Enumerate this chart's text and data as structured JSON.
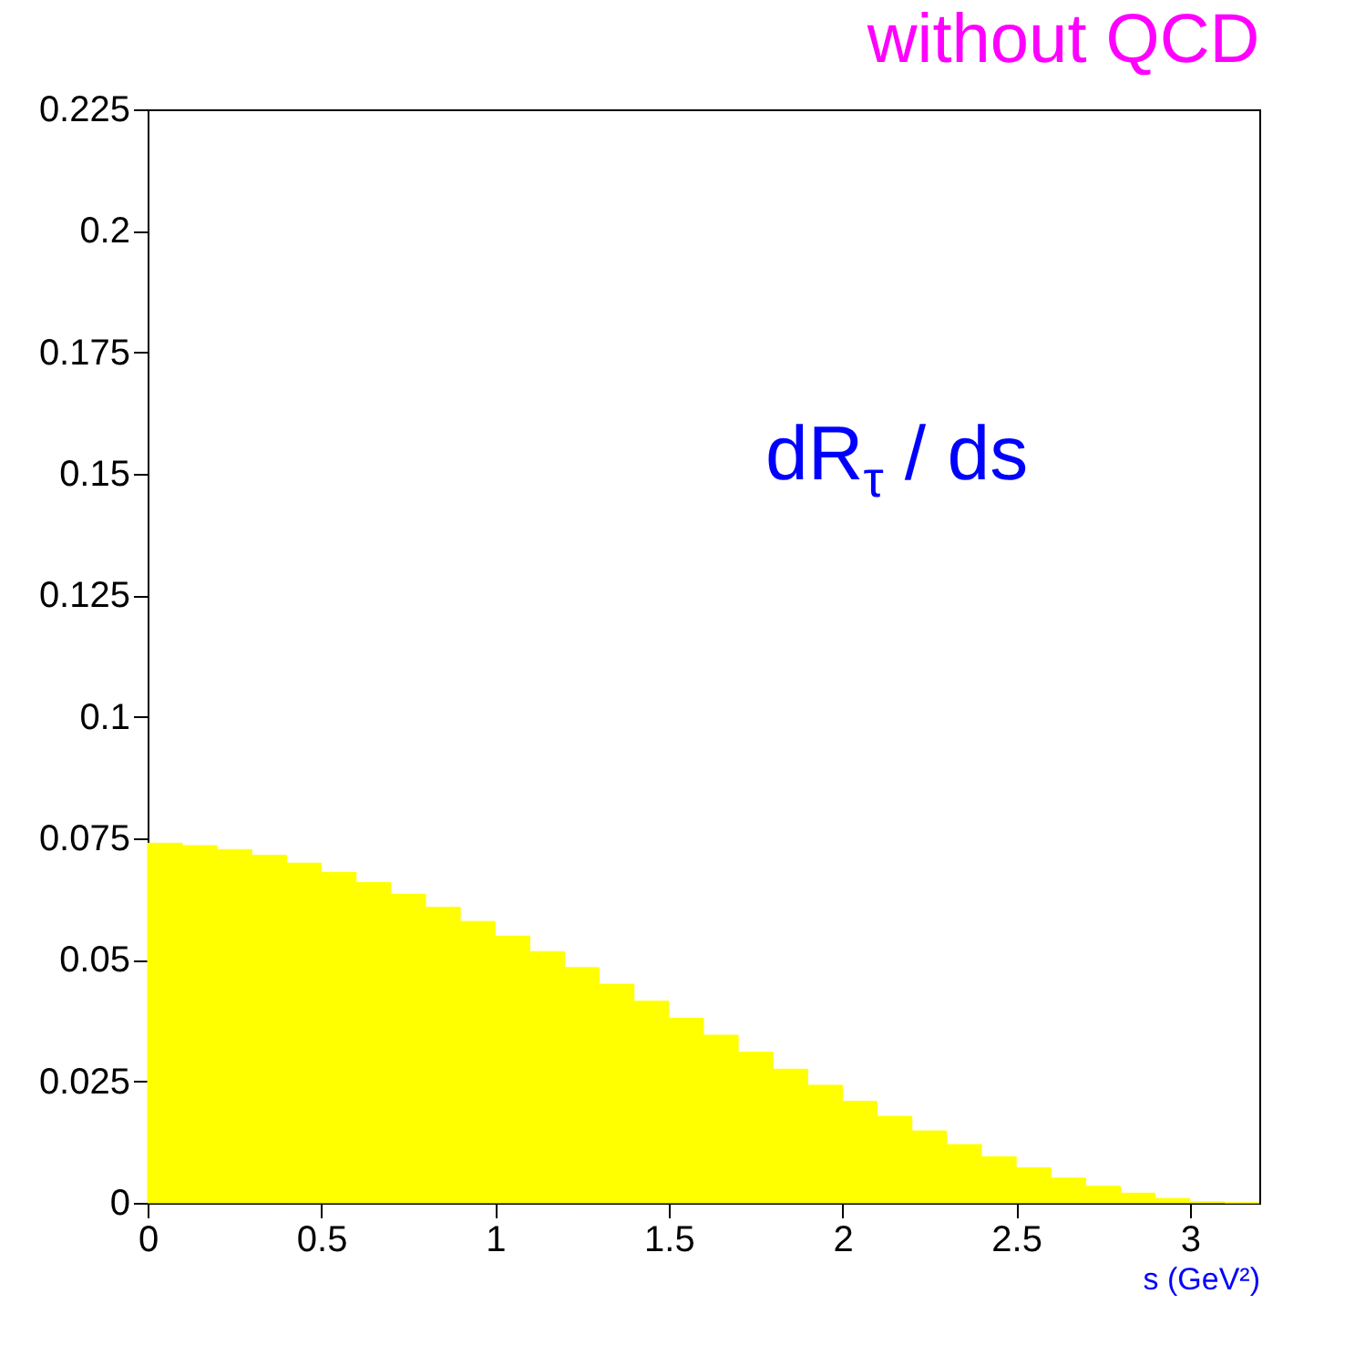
{
  "chart_data": {
    "type": "histogram",
    "title": "without QCD",
    "xlabel": "s (GeV²)",
    "annotations": [
      "dR$_{τ}$ / ds"
    ],
    "bins": [
      0,
      0.1,
      0.2,
      0.3,
      0.4,
      0.5,
      0.6,
      0.7,
      0.8,
      0.9,
      1.0,
      1.1,
      1.2,
      1.3,
      1.4,
      1.5,
      1.6,
      1.7,
      1.8,
      1.9,
      2.0,
      2.1,
      2.2,
      2.3,
      2.4,
      2.5,
      2.6,
      2.7,
      2.8,
      2.9,
      3.0,
      3.1,
      3.2
    ],
    "values": [
      0.074,
      0.0735,
      0.0727,
      0.0715,
      0.0699,
      0.068,
      0.0659,
      0.0635,
      0.0608,
      0.0579,
      0.0549,
      0.0517,
      0.0484,
      0.045,
      0.0415,
      0.038,
      0.0345,
      0.031,
      0.0275,
      0.0242,
      0.0209,
      0.0178,
      0.0148,
      0.012,
      0.0095,
      0.0072,
      0.0051,
      0.0034,
      0.002,
      0.0009,
      0.0002,
      0
    ],
    "color": "#ffff00",
    "xlim": [
      0,
      3.2
    ],
    "xticks": [
      0,
      0.5,
      1,
      1.5,
      2,
      2.5,
      3
    ],
    "ylim": [
      0,
      0.225
    ],
    "yticks": [
      0,
      0.025,
      0.05,
      0.075,
      0.1,
      0.125,
      0.15,
      0.175,
      0.2,
      0.225
    ]
  }
}
